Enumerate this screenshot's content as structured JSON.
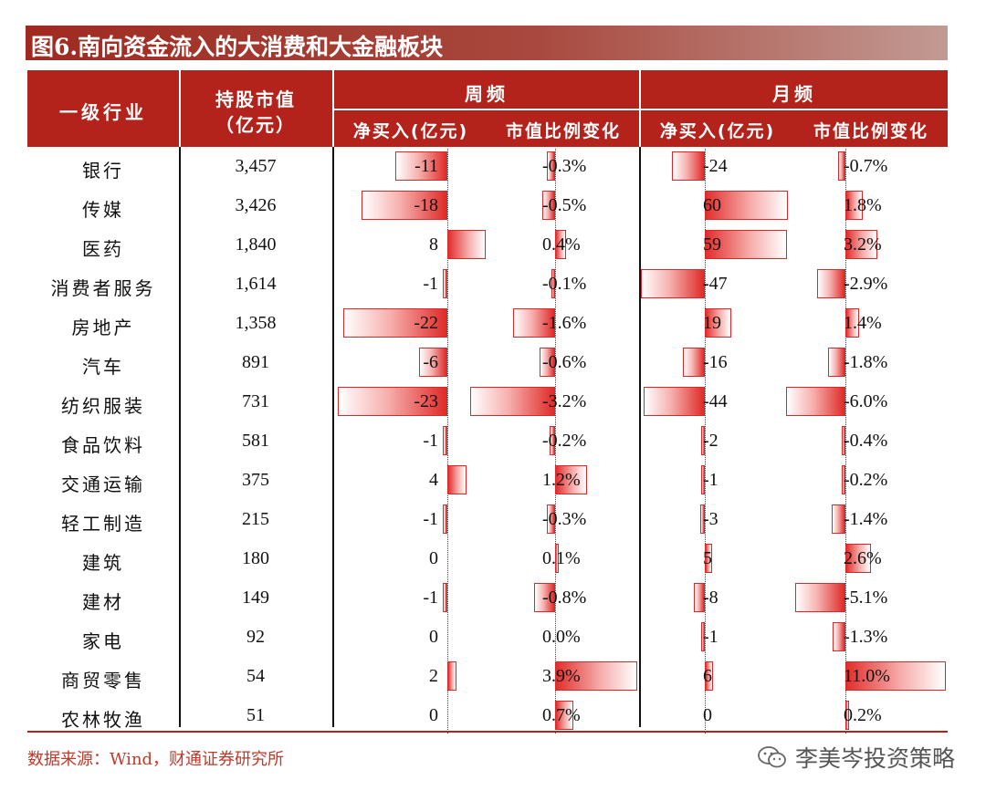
{
  "title": "图6.南向资金流入的大消费和大金融板块",
  "header": {
    "industry": "一级行业",
    "market_value_line1": "持股市值",
    "market_value_line2": "（亿元）",
    "weekly": "周频",
    "monthly": "月频",
    "net_buy": "净买入(亿元)",
    "ratio_change": "市值比例变化"
  },
  "rows": [
    {
      "industry": "银行",
      "mv": "3,457",
      "w_net": "-11",
      "w_ratio": "-0.3%",
      "m_net": "-24",
      "m_ratio": "-0.7%"
    },
    {
      "industry": "传媒",
      "mv": "3,426",
      "w_net": "-18",
      "w_ratio": "-0.5%",
      "m_net": "60",
      "m_ratio": "1.8%"
    },
    {
      "industry": "医药",
      "mv": "1,840",
      "w_net": "8",
      "w_ratio": "0.4%",
      "m_net": "59",
      "m_ratio": "3.2%"
    },
    {
      "industry": "消费者服务",
      "mv": "1,614",
      "w_net": "-1",
      "w_ratio": "-0.1%",
      "m_net": "-47",
      "m_ratio": "-2.9%"
    },
    {
      "industry": "房地产",
      "mv": "1,358",
      "w_net": "-22",
      "w_ratio": "-1.6%",
      "m_net": "19",
      "m_ratio": "1.4%"
    },
    {
      "industry": "汽车",
      "mv": "891",
      "w_net": "-6",
      "w_ratio": "-0.6%",
      "m_net": "-16",
      "m_ratio": "-1.8%"
    },
    {
      "industry": "纺织服装",
      "mv": "731",
      "w_net": "-23",
      "w_ratio": "-3.2%",
      "m_net": "-44",
      "m_ratio": "-6.0%"
    },
    {
      "industry": "食品饮料",
      "mv": "581",
      "w_net": "-1",
      "w_ratio": "-0.2%",
      "m_net": "-2",
      "m_ratio": "-0.4%"
    },
    {
      "industry": "交通运输",
      "mv": "375",
      "w_net": "4",
      "w_ratio": "1.2%",
      "m_net": "-1",
      "m_ratio": "-0.2%"
    },
    {
      "industry": "轻工制造",
      "mv": "215",
      "w_net": "-1",
      "w_ratio": "-0.3%",
      "m_net": "-3",
      "m_ratio": "-1.4%"
    },
    {
      "industry": "建筑",
      "mv": "180",
      "w_net": "0",
      "w_ratio": "0.1%",
      "m_net": "5",
      "m_ratio": "2.6%"
    },
    {
      "industry": "建材",
      "mv": "149",
      "w_net": "-1",
      "w_ratio": "-0.8%",
      "m_net": "-8",
      "m_ratio": "-5.1%"
    },
    {
      "industry": "家电",
      "mv": "92",
      "w_net": "0",
      "w_ratio": "0.0%",
      "m_net": "-1",
      "m_ratio": "-1.3%"
    },
    {
      "industry": "商贸零售",
      "mv": "54",
      "w_net": "2",
      "w_ratio": "3.9%",
      "m_net": "6",
      "m_ratio": "11.0%"
    },
    {
      "industry": "农林牧渔",
      "mv": "51",
      "w_net": "0",
      "w_ratio": "0.7%",
      "m_net": "0",
      "m_ratio": "0.2%"
    }
  ],
  "source": "数据来源：Wind，财通证券研究所",
  "watermark": "李美岑投资策略",
  "colors": {
    "header_bg": "#b3221b",
    "bar_red": "#df2a28",
    "source_text": "#c0392b"
  }
}
